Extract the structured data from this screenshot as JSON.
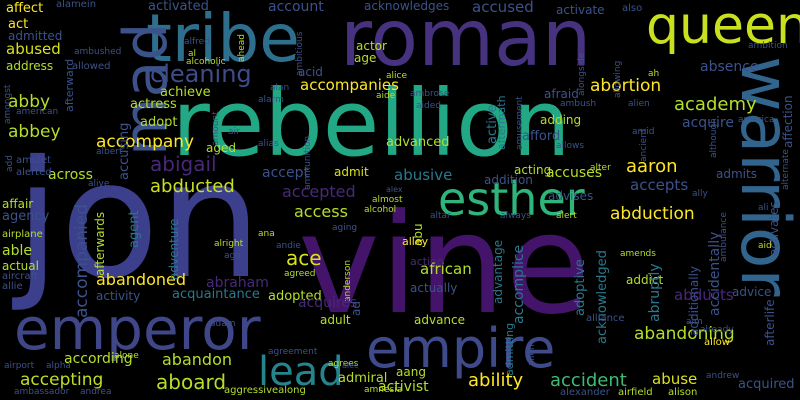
{
  "words": [
    {
      "text": "jon",
      "color": "#3b3f8c"
    },
    {
      "text": "vine",
      "color": "#44146b"
    },
    {
      "text": "rebellion",
      "color": "#22a884"
    },
    {
      "text": "roman",
      "color": "#46327f"
    },
    {
      "text": "tribe",
      "color": "#2e6f8e"
    },
    {
      "text": "queen",
      "color": "#c8e020"
    },
    {
      "text": "mad",
      "color": "#3b528b"
    },
    {
      "text": "warrior",
      "color": "#32658e"
    },
    {
      "text": "emperor",
      "color": "#404788"
    },
    {
      "text": "empire",
      "color": "#3f4a8a"
    },
    {
      "text": "esther",
      "color": "#2fb47c"
    },
    {
      "text": "lead",
      "color": "#25858e"
    },
    {
      "text": "cleaning",
      "color": "#3e4c8a"
    },
    {
      "text": "abigail",
      "color": "#482878"
    },
    {
      "text": "abducted",
      "color": "#c9e020"
    },
    {
      "text": "accompanies",
      "color": "#fde725"
    },
    {
      "text": "abortion",
      "color": "#fde725"
    },
    {
      "text": "aaron",
      "color": "#fde725"
    },
    {
      "text": "abduction",
      "color": "#fde725"
    },
    {
      "text": "accompany",
      "color": "#fde725"
    },
    {
      "text": "abandoned",
      "color": "#fde725"
    },
    {
      "text": "aboard",
      "color": "#b5de2b"
    },
    {
      "text": "ability",
      "color": "#fde725"
    },
    {
      "text": "accident",
      "color": "#3dbc74"
    },
    {
      "text": "abandoning",
      "color": "#b5de2b"
    },
    {
      "text": "accepting",
      "color": "#bddf26"
    },
    {
      "text": "abuse",
      "color": "#d8e219"
    },
    {
      "text": "abandon",
      "color": "#b5de2b"
    },
    {
      "text": "access",
      "color": "#b5de2b"
    },
    {
      "text": "ace",
      "color": "#d8e219"
    },
    {
      "text": "according",
      "color": "#b5de2b"
    },
    {
      "text": "academy",
      "color": "#b5de2b"
    },
    {
      "text": "abbey",
      "color": "#b5de2b"
    },
    {
      "text": "abby",
      "color": "#b5de2b"
    },
    {
      "text": "abused",
      "color": "#d8e219"
    },
    {
      "text": "accused",
      "color": "#3b528b"
    },
    {
      "text": "absence",
      "color": "#3b528b"
    },
    {
      "text": "acquire",
      "color": "#3b528b"
    },
    {
      "text": "accepts",
      "color": "#3b528b"
    },
    {
      "text": "acquired",
      "color": "#3b528b"
    },
    {
      "text": "adopted",
      "color": "#b5de2b"
    },
    {
      "text": "across",
      "color": "#b5de2b"
    },
    {
      "text": "accompanied",
      "color": "#3b528b"
    },
    {
      "text": "accepted",
      "color": "#482878"
    },
    {
      "text": "abusive",
      "color": "#2a788e"
    },
    {
      "text": "accuses",
      "color": "#b5de2b"
    },
    {
      "text": "abducts",
      "color": "#482878"
    },
    {
      "text": "abraham",
      "color": "#482878"
    },
    {
      "text": "acquaintance",
      "color": "#2a788e"
    },
    {
      "text": "activist",
      "color": "#b5de2b"
    },
    {
      "text": "admiral",
      "color": "#b5de2b"
    },
    {
      "text": "account",
      "color": "#3b528b"
    },
    {
      "text": "acknowledges",
      "color": "#3b528b"
    },
    {
      "text": "activated",
      "color": "#3b528b"
    },
    {
      "text": "activate",
      "color": "#3b528b"
    },
    {
      "text": "acid",
      "color": "#3b528b"
    },
    {
      "text": "achieve",
      "color": "#b5de2b"
    },
    {
      "text": "actress",
      "color": "#b5de2b"
    },
    {
      "text": "adopt",
      "color": "#b5de2b"
    },
    {
      "text": "aged",
      "color": "#b5de2b"
    },
    {
      "text": "advanced",
      "color": "#b5de2b"
    },
    {
      "text": "adding",
      "color": "#b5de2b"
    },
    {
      "text": "afford",
      "color": "#3b528b"
    },
    {
      "text": "afraid",
      "color": "#3b528b"
    },
    {
      "text": "accusing",
      "color": "#3b528b"
    },
    {
      "text": "acting",
      "color": "#b5de2b"
    },
    {
      "text": "admits",
      "color": "#3b528b"
    },
    {
      "text": "advises",
      "color": "#3b528b"
    },
    {
      "text": "addition",
      "color": "#3b528b"
    },
    {
      "text": "accept",
      "color": "#3b528b"
    },
    {
      "text": "admit",
      "color": "#d8e219"
    },
    {
      "text": "advance",
      "color": "#b5de2b"
    },
    {
      "text": "adult",
      "color": "#b5de2b"
    },
    {
      "text": "actually",
      "color": "#3b528b"
    },
    {
      "text": "african",
      "color": "#b5de2b"
    },
    {
      "text": "addict",
      "color": "#b5de2b"
    },
    {
      "text": "advice",
      "color": "#3b528b"
    },
    {
      "text": "activity",
      "color": "#3b528b"
    },
    {
      "text": "affect",
      "color": "#fde725"
    },
    {
      "text": "act",
      "color": "#fde725"
    },
    {
      "text": "admitted",
      "color": "#3b528b"
    },
    {
      "text": "address",
      "color": "#b5de2b"
    },
    {
      "text": "agency",
      "color": "#3b528b"
    },
    {
      "text": "affair",
      "color": "#b5de2b"
    },
    {
      "text": "able",
      "color": "#b5de2b"
    },
    {
      "text": "actual",
      "color": "#b5de2b"
    },
    {
      "text": "agent",
      "color": "#2a788e"
    },
    {
      "text": "adventure",
      "color": "#2a788e"
    },
    {
      "text": "age",
      "color": "#b5de2b"
    },
    {
      "text": "actor",
      "color": "#b5de2b"
    },
    {
      "text": "aang",
      "color": "#b5de2b"
    },
    {
      "text": "abu",
      "color": "#b5de2b"
    },
    {
      "text": "alley",
      "color": "#fde725"
    },
    {
      "text": "allow",
      "color": "#fde725"
    },
    {
      "text": "aggressivealong",
      "color": "#b5de2b"
    },
    {
      "text": "airfield",
      "color": "#b5de2b"
    },
    {
      "text": "alison",
      "color": "#b5de2b"
    },
    {
      "text": "also",
      "color": "#3b528b"
    },
    {
      "text": "alamein",
      "color": "#3b528b"
    },
    {
      "text": "ambition",
      "color": "#3b528b"
    },
    {
      "text": "alice",
      "color": "#b5de2b"
    },
    {
      "text": "alarm",
      "color": "#3b528b"
    },
    {
      "text": "affection",
      "color": "#3b528b"
    },
    {
      "text": "afterlife",
      "color": "#3b528b"
    },
    {
      "text": "activates",
      "color": "#3b528b"
    },
    {
      "text": "accidentally",
      "color": "#3b528b"
    },
    {
      "text": "additionally",
      "color": "#3b528b"
    },
    {
      "text": "abruptly",
      "color": "#2a788e"
    },
    {
      "text": "acknowledged",
      "color": "#2a788e"
    },
    {
      "text": "adoptive",
      "color": "#2a788e"
    },
    {
      "text": "accomplice",
      "color": "#2a788e"
    },
    {
      "text": "advantage",
      "color": "#2a788e"
    },
    {
      "text": "admitting",
      "color": "#2a788e"
    },
    {
      "text": "active",
      "color": "#2a788e"
    },
    {
      "text": "aftermath",
      "color": "#2a788e"
    },
    {
      "text": "afterwards",
      "color": "#b5de2b"
    },
    {
      "text": "afterward",
      "color": "#3b528b"
    },
    {
      "text": "ambushed",
      "color": "#3b528b"
    },
    {
      "text": "allowed",
      "color": "#3b528b"
    },
    {
      "text": "amongst",
      "color": "#3b528b"
    },
    {
      "text": "american",
      "color": "#3b528b"
    },
    {
      "text": "amulet",
      "color": "#3b528b"
    },
    {
      "text": "alerted",
      "color": "#3b528b"
    },
    {
      "text": "airplane",
      "color": "#b5de2b"
    },
    {
      "text": "aircraft",
      "color": "#3b528b"
    },
    {
      "text": "allie",
      "color": "#3b528b"
    },
    {
      "text": "airport",
      "color": "#3b528b"
    },
    {
      "text": "alpha",
      "color": "#3b528b"
    },
    {
      "text": "ambassador",
      "color": "#3b528b"
    },
    {
      "text": "andrea",
      "color": "#3b528b"
    },
    {
      "text": "alone",
      "color": "#b5de2b"
    },
    {
      "text": "agreement",
      "color": "#3b528b"
    },
    {
      "text": "agrees",
      "color": "#b5de2b"
    },
    {
      "text": "alec",
      "color": "#3b528b"
    },
    {
      "text": "amnesia",
      "color": "#b5de2b"
    },
    {
      "text": "alexander",
      "color": "#3b528b"
    },
    {
      "text": "alliance",
      "color": "#3b528b"
    },
    {
      "text": "andrew",
      "color": "#3b528b"
    },
    {
      "text": "aim",
      "color": "#3b528b"
    },
    {
      "text": "already",
      "color": "#3b528b"
    },
    {
      "text": "amends",
      "color": "#b5de2b"
    },
    {
      "text": "ambulance",
      "color": "#3b528b"
    },
    {
      "text": "aid",
      "color": "#b5de2b"
    },
    {
      "text": "ali",
      "color": "#3b528b"
    },
    {
      "text": "alert",
      "color": "#b5de2b"
    },
    {
      "text": "always",
      "color": "#3b528b"
    },
    {
      "text": "alter",
      "color": "#b5de2b"
    },
    {
      "text": "ally",
      "color": "#3b528b"
    },
    {
      "text": "altar",
      "color": "#3b528b"
    },
    {
      "text": "almost",
      "color": "#b5de2b"
    },
    {
      "text": "alcohol",
      "color": "#b5de2b"
    },
    {
      "text": "alex",
      "color": "#3b528b"
    },
    {
      "text": "aging",
      "color": "#3b528b"
    },
    {
      "text": "ana",
      "color": "#b5de2b"
    },
    {
      "text": "andie",
      "color": "#3b528b"
    },
    {
      "text": "action",
      "color": "#482878"
    },
    {
      "text": "anderson",
      "color": "#b5de2b"
    },
    {
      "text": "agreed",
      "color": "#b5de2b"
    },
    {
      "text": "acquires",
      "color": "#482878"
    },
    {
      "text": "adam",
      "color": "#3b528b"
    },
    {
      "text": "alright",
      "color": "#b5de2b"
    },
    {
      "text": "ago",
      "color": "#3b528b"
    },
    {
      "text": "allen",
      "color": "#3b528b"
    },
    {
      "text": "alive",
      "color": "#3b528b"
    },
    {
      "text": "albert",
      "color": "#3b528b"
    },
    {
      "text": "alias",
      "color": "#3b528b"
    },
    {
      "text": "ammunition",
      "color": "#3b528b"
    },
    {
      "text": "aide",
      "color": "#b5de2b"
    },
    {
      "text": "aided",
      "color": "#3b528b"
    },
    {
      "text": "ambrose",
      "color": "#3b528b"
    },
    {
      "text": "alan",
      "color": "#3b528b"
    },
    {
      "text": "alfred",
      "color": "#3b528b"
    },
    {
      "text": "alcoholic",
      "color": "#b5de2b"
    },
    {
      "text": "al",
      "color": "#b5de2b"
    },
    {
      "text": "ahead",
      "color": "#b5de2b"
    },
    {
      "text": "ambitious",
      "color": "#3b528b"
    },
    {
      "text": "alongside",
      "color": "#3b528b"
    },
    {
      "text": "allowing",
      "color": "#3b528b"
    },
    {
      "text": "ah",
      "color": "#b5de2b"
    },
    {
      "text": "alien",
      "color": "#3b528b"
    },
    {
      "text": "ambush",
      "color": "#3b528b"
    },
    {
      "text": "amusement",
      "color": "#3b528b"
    },
    {
      "text": "amid",
      "color": "#3b528b"
    },
    {
      "text": "ancient",
      "color": "#3b528b"
    },
    {
      "text": "allows",
      "color": "#3b528b"
    },
    {
      "text": "although",
      "color": "#3b528b"
    },
    {
      "text": "america",
      "color": "#3b528b"
    },
    {
      "text": "alternate",
      "color": "#3b528b"
    },
    {
      "text": "amount",
      "color": "#3b528b"
    },
    {
      "text": "air",
      "color": "#3b528b"
    },
    {
      "text": "ad",
      "color": "#3b528b"
    },
    {
      "text": "add",
      "color": "#3b528b"
    }
  ]
}
